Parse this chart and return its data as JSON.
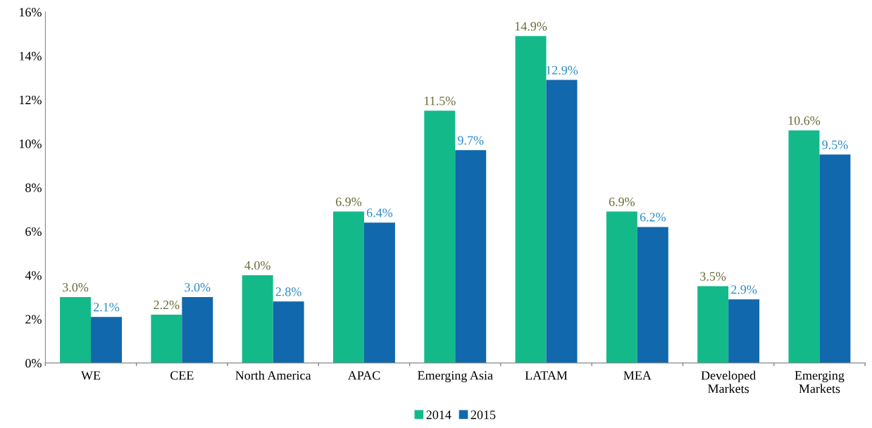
{
  "chart_data": {
    "type": "bar",
    "categories": [
      "WE",
      "CEE",
      "North America",
      "APAC",
      "Emerging Asia",
      "LATAM",
      "MEA",
      "Developed\nMarkets",
      "Emerging\nMarkets"
    ],
    "series": [
      {
        "name": "2014",
        "color": "#14b98a",
        "values": [
          3.0,
          2.2,
          4.0,
          6.9,
          11.5,
          14.9,
          6.9,
          3.5,
          10.6
        ],
        "value_labels": [
          "3.0%",
          "2.2%",
          "4.0%",
          "6.9%",
          "11.5%",
          "14.9%",
          "6.9%",
          "3.5%",
          "10.6%"
        ]
      },
      {
        "name": "2015",
        "color": "#1168ac",
        "values": [
          2.1,
          3.0,
          2.8,
          6.4,
          9.7,
          12.9,
          6.2,
          2.9,
          9.5
        ],
        "value_labels": [
          "2.1%",
          "3.0%",
          "2.8%",
          "6.4%",
          "9.7%",
          "12.9%",
          "6.2%",
          "2.9%",
          "9.5%"
        ]
      }
    ],
    "ylim": [
      0,
      16
    ],
    "yticks": [
      {
        "value": 0,
        "label": "0%"
      },
      {
        "value": 2,
        "label": "2%"
      },
      {
        "value": 4,
        "label": "4%"
      },
      {
        "value": 6,
        "label": "6%"
      },
      {
        "value": 8,
        "label": "8%"
      },
      {
        "value": 10,
        "label": "10%"
      },
      {
        "value": 12,
        "label": "12%"
      },
      {
        "value": 14,
        "label": "14%"
      },
      {
        "value": 16,
        "label": "16%"
      }
    ],
    "legend": "bottom",
    "grid": false
  }
}
